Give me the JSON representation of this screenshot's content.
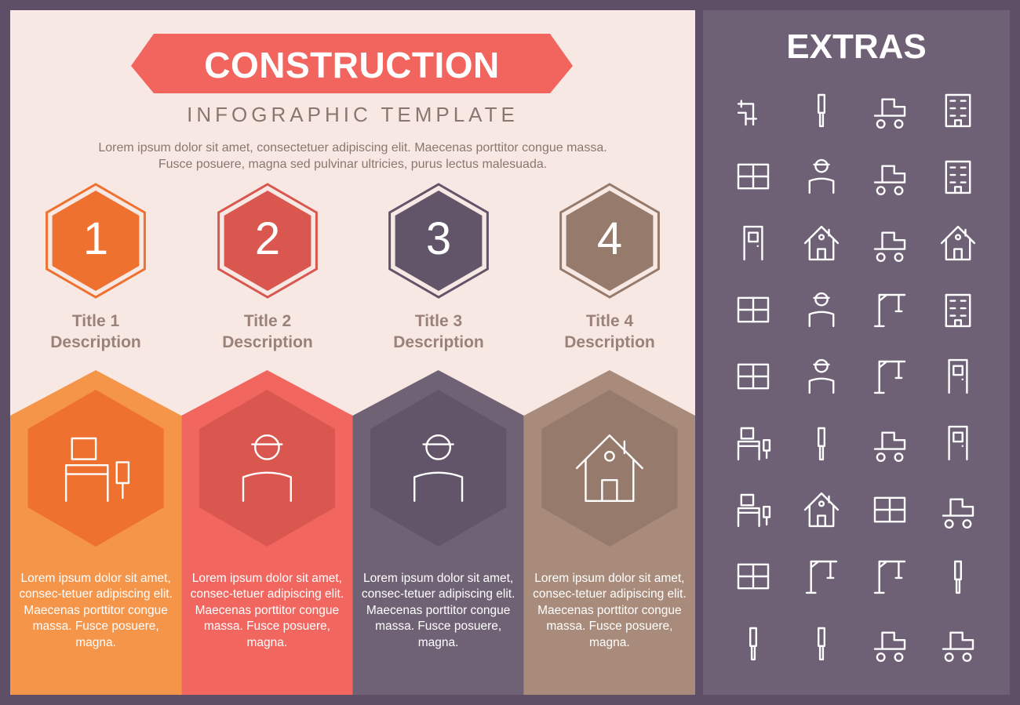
{
  "header": {
    "title": "CONSTRUCTION",
    "subtitle": "INFOGRAPHIC TEMPLATE",
    "intro": "Lorem ipsum dolor sit amet, consectetuer adipiscing elit. Maecenas porttitor congue massa. Fusce posuere, magna sed pulvinar ultricies, purus lectus malesuada."
  },
  "colors": {
    "frame": "#5e4f66",
    "background": "#f8e8e3",
    "banner": "#f2655e",
    "extras_panel": "#6e6176",
    "text_muted": "#9a8279"
  },
  "steps": [
    {
      "number": "1",
      "title": "Title 1",
      "description": "Description",
      "icon": "office-desk-icon",
      "body": "Lorem ipsum dolor sit amet, consec-tetuer adipiscing elit. Maecenas porttitor congue massa. Fusce posuere, magna.",
      "color": "#f5954a",
      "hex_color": "#ee7130"
    },
    {
      "number": "2",
      "title": "Title 2",
      "description": "Description",
      "icon": "worker-warning-icon",
      "body": "Lorem ipsum dolor sit amet, consec-tetuer adipiscing elit. Maecenas porttitor congue massa. Fusce posuere, magna.",
      "color": "#f26660",
      "hex_color": "#d9574f"
    },
    {
      "number": "3",
      "title": "Title 3",
      "description": "Description",
      "icon": "worker-shoveling-icon",
      "body": "Lorem ipsum dolor sit amet, consec-tetuer adipiscing elit. Maecenas porttitor congue massa. Fusce posuere, magna.",
      "color": "#6f6274",
      "hex_color": "#625569"
    },
    {
      "number": "4",
      "title": "Title 4",
      "description": "Description",
      "icon": "house-icon",
      "body": "Lorem ipsum dolor sit amet, consec-tetuer adipiscing elit. Maecenas porttitor congue massa. Fusce posuere, magna.",
      "color": "#a88b7a",
      "hex_color": "#967a6b"
    }
  ],
  "extras": {
    "title": "EXTRAS",
    "icons": [
      "pipe-icon",
      "compass-icon",
      "forklift-icon",
      "school-building-icon",
      "floor-plan-icon",
      "worker-shoveling-icon",
      "excavator-icon",
      "apartment-building-icon",
      "open-door-icon",
      "house-design-icon",
      "road-roller-icon",
      "house-icon",
      "window-icon",
      "worker-helmet-icon",
      "crawler-crane-icon",
      "office-buildings-icon",
      "kitchen-cabinets-icon",
      "worker-warning-icon",
      "wrecking-ball-icon",
      "door-icon",
      "office-desk-icon",
      "drill-icon",
      "crane-truck-icon",
      "bathroom-icon",
      "tv-stand-icon",
      "house-painting-icon",
      "road-barrier-icon",
      "wheelbarrow-icon",
      "blueprint-icon",
      "hook-load-icon",
      "tower-crane-icon",
      "hammer-icon",
      "paintbrush-icon",
      "hand-saw-icon",
      "bulldozer-icon",
      "concrete-mixer-icon"
    ]
  }
}
